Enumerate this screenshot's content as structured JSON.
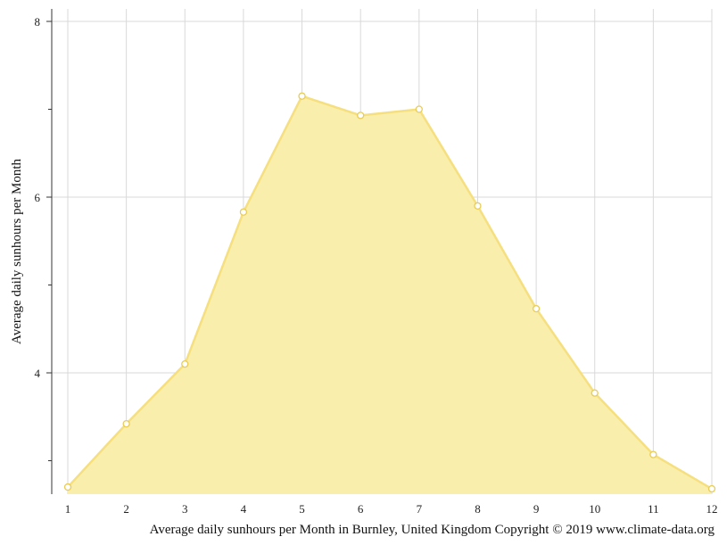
{
  "chart_data": {
    "type": "area",
    "x": [
      1,
      2,
      3,
      4,
      5,
      6,
      7,
      8,
      9,
      10,
      11,
      12
    ],
    "series": [
      {
        "values": [
          2.7,
          3.42,
          4.1,
          5.83,
          7.15,
          6.93,
          7.0,
          5.9,
          4.73,
          3.77,
          3.07,
          2.68
        ]
      }
    ],
    "ylabel": "Average daily sunhours per Month",
    "caption": "Average daily sunhours per Month in Burnley, United Kingdom Copyright © 2019 www.climate-data.org",
    "x_ticks": [
      "1",
      "2",
      "3",
      "4",
      "5",
      "6",
      "7",
      "8",
      "9",
      "10",
      "11",
      "12"
    ],
    "y_ticks": [
      {
        "value": 8,
        "label": "8"
      },
      {
        "value": 6,
        "label": "6"
      },
      {
        "value": 4,
        "label": "4"
      }
    ],
    "y_minor_ticks": [
      7,
      5,
      3
    ],
    "xlim": [
      1,
      12
    ],
    "ylim": [
      2.68,
      8.15
    ],
    "grid": true,
    "colors": {
      "fill": "#f9eeac",
      "line": "#f5df7e",
      "point_fill": "#ffffff",
      "point_stroke": "#e8cc55",
      "grid": "#d9d9d9",
      "axis": "#333333"
    }
  }
}
